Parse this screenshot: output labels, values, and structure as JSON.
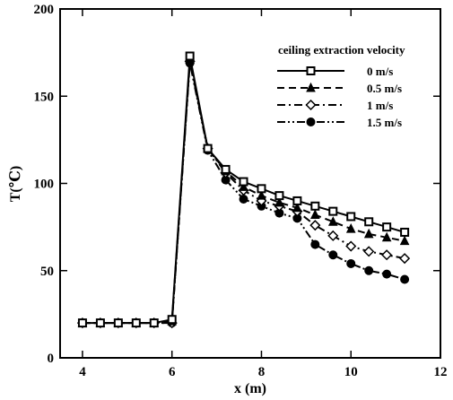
{
  "chart_data": {
    "type": "line",
    "title": "",
    "xlabel": "x (m)",
    "ylabel": "T(℃)",
    "xlim": [
      3.5,
      12
    ],
    "ylim": [
      0,
      200
    ],
    "xticks": [
      4,
      6,
      8,
      10,
      12
    ],
    "yticks": [
      0,
      50,
      100,
      150,
      200
    ],
    "grid": false,
    "legend": {
      "title": "ceiling extraction velocity",
      "placement": "top-right"
    },
    "x": [
      4.0,
      4.4,
      4.8,
      5.2,
      5.6,
      6.0,
      6.4,
      6.8,
      7.2,
      7.6,
      8.0,
      8.4,
      8.8,
      9.2,
      9.6,
      10.0,
      10.4,
      10.8,
      11.2
    ],
    "series": [
      {
        "name": "0 m/s",
        "marker": "square",
        "dash": "solid",
        "values": [
          20,
          20,
          20,
          20,
          20,
          22,
          173,
          120,
          108,
          101,
          97,
          93,
          90,
          87,
          84,
          81,
          78,
          75,
          72
        ]
      },
      {
        "name": "0.5 m/s",
        "marker": "triangle",
        "dash": "dashed",
        "values": [
          20,
          20,
          20,
          20,
          20,
          21,
          171,
          120,
          107,
          98,
          93,
          89,
          86,
          82,
          78,
          74,
          71,
          69,
          67
        ]
      },
      {
        "name": "1 m/s",
        "marker": "diamond-open",
        "dash": "dashdot",
        "values": [
          20,
          20,
          20,
          20,
          20,
          20,
          170,
          120,
          106,
          96,
          90,
          87,
          84,
          76,
          70,
          64,
          61,
          59,
          57
        ]
      },
      {
        "name": "1.5 m/s",
        "marker": "circle",
        "dash": "dashdotdot",
        "values": [
          20,
          20,
          20,
          20,
          20,
          20,
          169,
          119,
          102,
          91,
          87,
          83,
          80,
          65,
          59,
          54,
          50,
          48,
          45
        ]
      }
    ]
  }
}
